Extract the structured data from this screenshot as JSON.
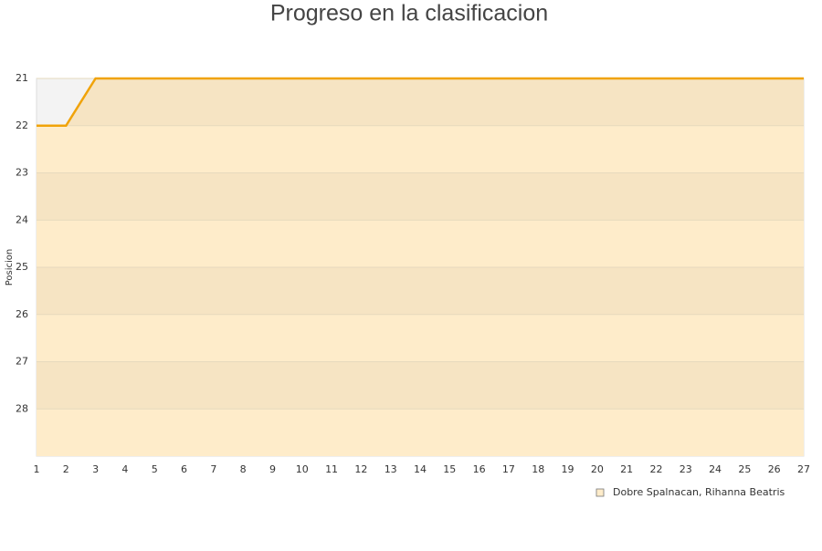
{
  "chart_data": {
    "type": "line",
    "title": "Progreso en la clasificacion",
    "y_label": "Posicion",
    "x": [
      1,
      2,
      3,
      4,
      5,
      6,
      7,
      8,
      9,
      10,
      11,
      12,
      13,
      14,
      15,
      16,
      17,
      18,
      19,
      20,
      21,
      22,
      23,
      24,
      25,
      26,
      27
    ],
    "series": [
      {
        "name": "Dobre Spalnacan, Rihanna Beatris",
        "color": "#f0a30a",
        "values": [
          22,
          22,
          21,
          21,
          21,
          21,
          21,
          21,
          21,
          21,
          21,
          21,
          21,
          21,
          21,
          21,
          21,
          21,
          21,
          21,
          21,
          21,
          21,
          21,
          21,
          21,
          21
        ]
      }
    ],
    "xlim": [
      1,
      27
    ],
    "xticks": [
      1,
      2,
      3,
      4,
      5,
      6,
      7,
      8,
      9,
      10,
      11,
      12,
      13,
      14,
      15,
      16,
      17,
      18,
      19,
      20,
      21,
      22,
      23,
      24,
      25,
      26,
      27
    ],
    "ylim": [
      21,
      29
    ],
    "yticks": [
      21,
      22,
      23,
      24,
      25,
      26,
      27,
      28
    ],
    "y_inverted": true,
    "grid": true,
    "band_colors": [
      "#f6e4c3",
      "#feecca"
    ],
    "legend": "bottom-right"
  }
}
